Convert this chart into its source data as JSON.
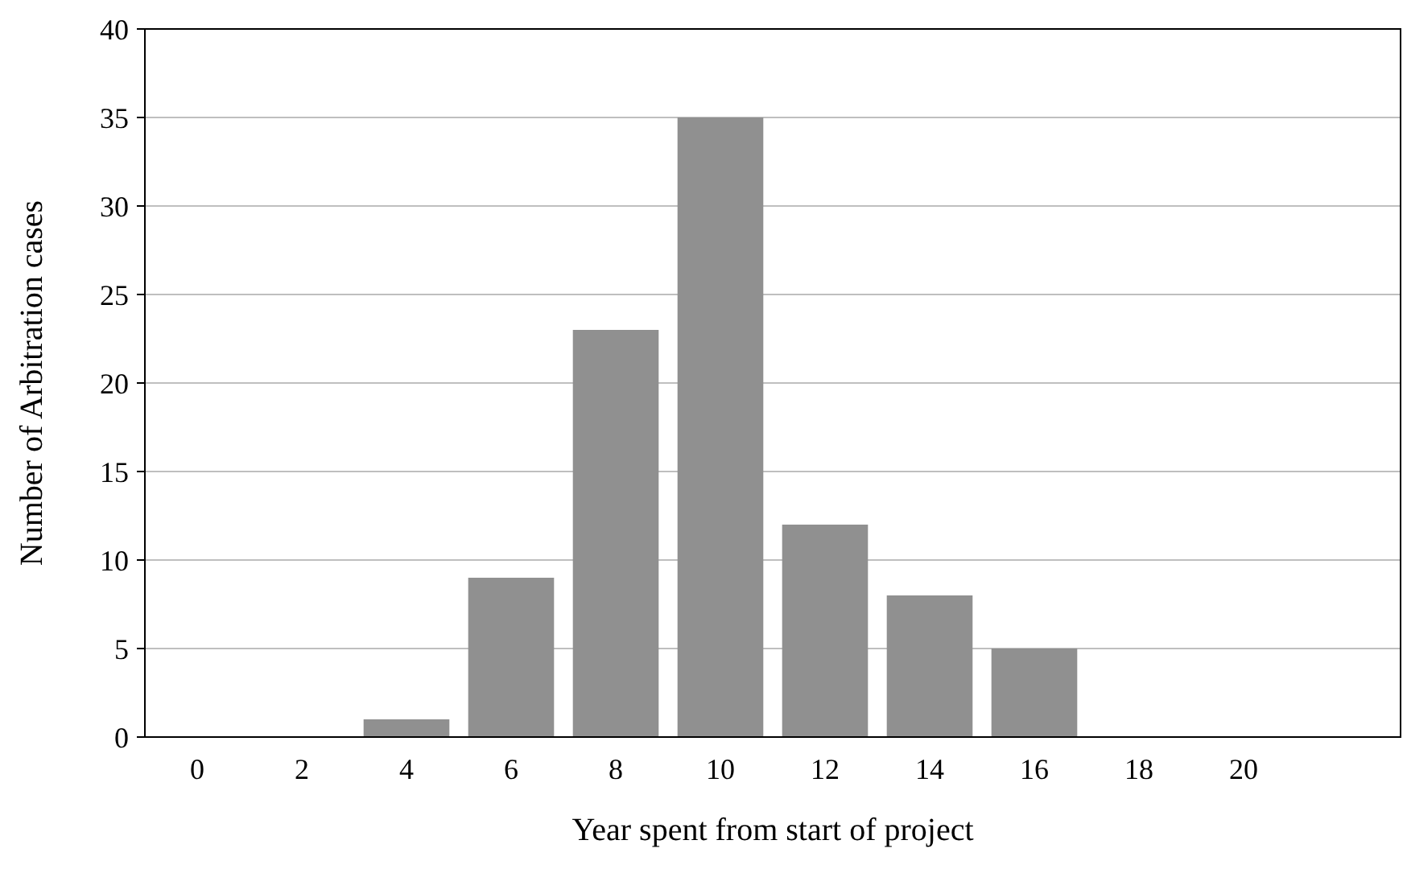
{
  "chart_data": {
    "type": "bar",
    "xlabel": "Year spent from start of project",
    "ylabel": "Number of Arbitration cases",
    "categories": [
      "0",
      "2",
      "4",
      "6",
      "8",
      "10",
      "12",
      "14",
      "16",
      "18",
      "20",
      null
    ],
    "values": [
      0,
      0,
      1,
      9,
      23,
      35,
      12,
      8,
      5,
      0,
      0,
      0
    ],
    "color": "#909090",
    "ylim": [
      0,
      40
    ],
    "yticks": [
      0,
      5,
      10,
      15,
      20,
      25,
      30,
      35,
      40
    ],
    "grid": "y"
  }
}
